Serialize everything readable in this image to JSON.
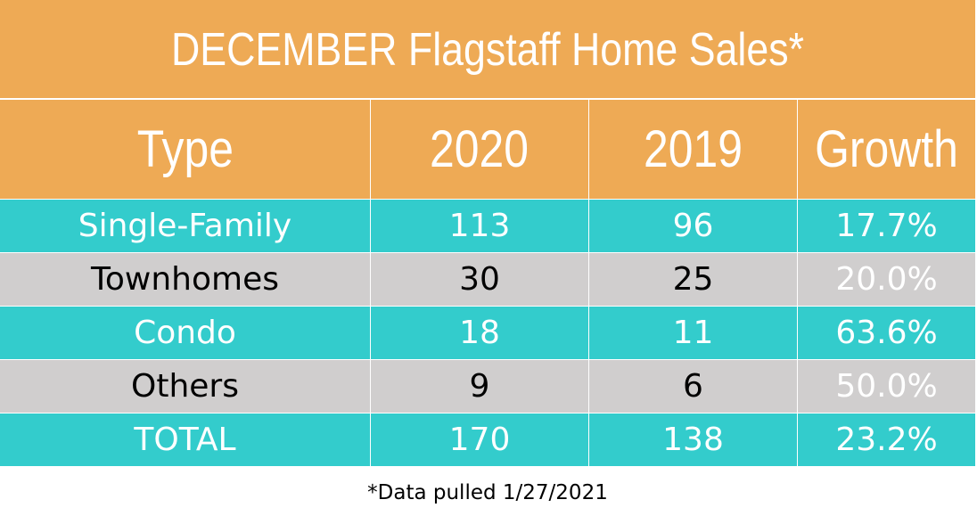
{
  "title": "DECEMBER Flagstaff Home Sales*",
  "footnote": "*Data pulled 1/27/2021",
  "colors": {
    "header_bg": "#eeaa55",
    "teal_row": "#33cccc",
    "gray_row": "#d0cece",
    "light_text": "#ffffff",
    "dark_text": "#000000"
  },
  "chart_data": {
    "type": "table",
    "title": "DECEMBER Flagstaff Home Sales*",
    "columns": [
      "Type",
      "2020",
      "2019",
      "Growth"
    ],
    "rows": [
      {
        "type": "Single-Family",
        "y2020": "113",
        "y2019": "96",
        "growth": "17.7%"
      },
      {
        "type": "Townhomes",
        "y2020": "30",
        "y2019": "25",
        "growth": "20.0%"
      },
      {
        "type": "Condo",
        "y2020": "18",
        "y2019": "11",
        "growth": "63.6%"
      },
      {
        "type": "Others",
        "y2020": "9",
        "y2019": "6",
        "growth": "50.0%"
      },
      {
        "type": "TOTAL",
        "y2020": "170",
        "y2019": "138",
        "growth": "23.2%"
      }
    ]
  }
}
